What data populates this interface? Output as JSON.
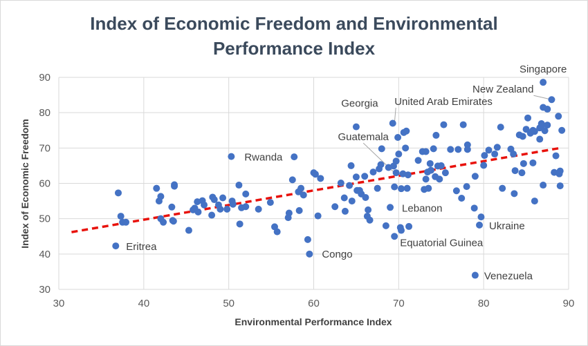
{
  "chart_data": {
    "type": "scatter",
    "title_line1": "Index of Economic Freedom and Environmental",
    "title_line2": "Performance Index",
    "xlabel": "Environmental Performance Index",
    "ylabel": "Index of Economic Freedom",
    "xlim": [
      30,
      90
    ],
    "ylim": [
      30,
      90
    ],
    "xticks": [
      30,
      40,
      50,
      60,
      70,
      80,
      90
    ],
    "yticks": [
      30,
      40,
      50,
      60,
      70,
      80,
      90
    ],
    "grid": true,
    "point_color": "#4472c4",
    "trendline": {
      "type": "linear",
      "x": [
        31.5,
        89
      ],
      "y": [
        46.2,
        70.0
      ],
      "color": "#e8120c",
      "style": "dashed"
    },
    "annotations": [
      {
        "label": "Singapore",
        "x": 87.0,
        "y": 88.6
      },
      {
        "label": "New Zealand",
        "x": 88.0,
        "y": 83.7
      },
      {
        "label": "United Arab Emirates",
        "x": 69.5,
        "y": 76.9
      },
      {
        "label": "Georgia",
        "x": 65.0,
        "y": 76.0
      },
      {
        "label": "Rwanda",
        "x": 50.3,
        "y": 67.6
      },
      {
        "label": "Guatemala",
        "x": 69.5,
        "y": 63.0
      },
      {
        "label": "Lebanon",
        "x": 69.0,
        "y": 53.2
      },
      {
        "label": "Ukraine",
        "x": 79.5,
        "y": 48.2
      },
      {
        "label": "Equatorial Guinea",
        "x": 69.5,
        "y": 45.0
      },
      {
        "label": "Eritrea",
        "x": 36.7,
        "y": 42.3
      },
      {
        "label": "Congo",
        "x": 59.5,
        "y": 40.0
      },
      {
        "label": "Venezuela",
        "x": 79.0,
        "y": 34.0
      }
    ],
    "points": [
      [
        36.7,
        42.3
      ],
      [
        37.0,
        57.3
      ],
      [
        37.3,
        50.7
      ],
      [
        37.5,
        49.0
      ],
      [
        37.9,
        49.0
      ],
      [
        41.5,
        58.6
      ],
      [
        41.8,
        55.0
      ],
      [
        42.0,
        56.3
      ],
      [
        42.0,
        50.0
      ],
      [
        42.3,
        49.0
      ],
      [
        43.3,
        53.3
      ],
      [
        43.4,
        49.5
      ],
      [
        43.5,
        49.3
      ],
      [
        43.6,
        59.6
      ],
      [
        43.6,
        59.2
      ],
      [
        45.3,
        46.7
      ],
      [
        45.8,
        52.5
      ],
      [
        46.0,
        53.0
      ],
      [
        46.3,
        54.8
      ],
      [
        46.4,
        51.9
      ],
      [
        46.9,
        55.1
      ],
      [
        47.1,
        53.9
      ],
      [
        48.0,
        51.0
      ],
      [
        48.1,
        56.1
      ],
      [
        48.3,
        55.4
      ],
      [
        48.8,
        53.9
      ],
      [
        49.0,
        52.7
      ],
      [
        49.3,
        55.9
      ],
      [
        49.8,
        52.7
      ],
      [
        50.3,
        67.6
      ],
      [
        50.4,
        55.0
      ],
      [
        50.5,
        54.1
      ],
      [
        51.2,
        59.5
      ],
      [
        51.3,
        48.5
      ],
      [
        51.5,
        53.1
      ],
      [
        52.0,
        57.0
      ],
      [
        52.0,
        53.4
      ],
      [
        53.5,
        52.7
      ],
      [
        54.9,
        54.6
      ],
      [
        55.4,
        47.7
      ],
      [
        55.7,
        46.3
      ],
      [
        57.0,
        50.3
      ],
      [
        57.1,
        51.6
      ],
      [
        57.5,
        61.0
      ],
      [
        57.7,
        67.5
      ],
      [
        58.2,
        57.6
      ],
      [
        58.5,
        58.6
      ],
      [
        58.3,
        52.3
      ],
      [
        58.8,
        56.7
      ],
      [
        59.3,
        44.1
      ],
      [
        59.5,
        40.0
      ],
      [
        60.0,
        63.0
      ],
      [
        60.2,
        62.6
      ],
      [
        60.5,
        50.8
      ],
      [
        60.8,
        61.4
      ],
      [
        62.5,
        53.4
      ],
      [
        63.2,
        60.1
      ],
      [
        63.6,
        55.9
      ],
      [
        63.7,
        52.1
      ],
      [
        64.2,
        59.4
      ],
      [
        64.4,
        65.0
      ],
      [
        64.5,
        55.0
      ],
      [
        65.0,
        76.0
      ],
      [
        65.0,
        61.8
      ],
      [
        65.1,
        58.0
      ],
      [
        65.4,
        58.0
      ],
      [
        65.6,
        57.0
      ],
      [
        66.0,
        62.0
      ],
      [
        66.1,
        56.0
      ],
      [
        66.3,
        50.7
      ],
      [
        66.4,
        52.5
      ],
      [
        66.6,
        49.6
      ],
      [
        67.0,
        63.2
      ],
      [
        67.5,
        58.6
      ],
      [
        67.7,
        64.1
      ],
      [
        67.9,
        65.3
      ],
      [
        68.0,
        69.8
      ],
      [
        68.5,
        48.0
      ],
      [
        68.8,
        64.5
      ],
      [
        69.0,
        53.2
      ],
      [
        69.3,
        77.0
      ],
      [
        69.4,
        64.9
      ],
      [
        69.5,
        45.0
      ],
      [
        69.7,
        63.0
      ],
      [
        69.5,
        59.0
      ],
      [
        69.7,
        66.3
      ],
      [
        69.9,
        73.0
      ],
      [
        70.0,
        68.3
      ],
      [
        70.3,
        58.5
      ],
      [
        70.2,
        47.5
      ],
      [
        70.3,
        46.7
      ],
      [
        70.6,
        74.4
      ],
      [
        70.5,
        62.7
      ],
      [
        70.8,
        70.0
      ],
      [
        70.9,
        74.8
      ],
      [
        71.1,
        62.4
      ],
      [
        71.0,
        58.6
      ],
      [
        71.2,
        47.8
      ],
      [
        72.3,
        66.5
      ],
      [
        72.8,
        69.0
      ],
      [
        73.0,
        58.3
      ],
      [
        73.2,
        61.2
      ],
      [
        73.2,
        69.0
      ],
      [
        73.4,
        63.2
      ],
      [
        73.5,
        58.6
      ],
      [
        73.7,
        65.6
      ],
      [
        73.8,
        63.7
      ],
      [
        74.1,
        69.8
      ],
      [
        74.3,
        61.9
      ],
      [
        74.4,
        73.6
      ],
      [
        74.6,
        64.9
      ],
      [
        74.8,
        61.2
      ],
      [
        75.0,
        65.0
      ],
      [
        75.3,
        76.6
      ],
      [
        75.5,
        63.0
      ],
      [
        76.1,
        69.6
      ],
      [
        76.8,
        57.9
      ],
      [
        77.0,
        69.6
      ],
      [
        77.4,
        55.8
      ],
      [
        77.6,
        76.6
      ],
      [
        78.0,
        59.1
      ],
      [
        78.1,
        70.9
      ],
      [
        78.1,
        69.6
      ],
      [
        78.9,
        53.0
      ],
      [
        79.0,
        34.0
      ],
      [
        79.0,
        62.0
      ],
      [
        79.5,
        48.2
      ],
      [
        79.7,
        50.5
      ],
      [
        80.0,
        65.1
      ],
      [
        80.1,
        67.9
      ],
      [
        80.6,
        69.4
      ],
      [
        81.3,
        68.3
      ],
      [
        81.6,
        70.2
      ],
      [
        82.0,
        75.9
      ],
      [
        82.2,
        58.6
      ],
      [
        83.2,
        69.7
      ],
      [
        83.5,
        68.3
      ],
      [
        83.6,
        57.1
      ],
      [
        83.7,
        63.6
      ],
      [
        84.2,
        73.7
      ],
      [
        84.5,
        63.0
      ],
      [
        84.6,
        73.3
      ],
      [
        84.7,
        65.6
      ],
      [
        85.0,
        75.3
      ],
      [
        85.2,
        78.5
      ],
      [
        85.5,
        74.2
      ],
      [
        85.8,
        65.8
      ],
      [
        85.8,
        75.0
      ],
      [
        86.0,
        74.7
      ],
      [
        86.0,
        55.0
      ],
      [
        86.6,
        75.7
      ],
      [
        86.6,
        72.5
      ],
      [
        86.8,
        76.9
      ],
      [
        86.8,
        76.3
      ],
      [
        87.0,
        81.5
      ],
      [
        87.0,
        88.6
      ],
      [
        87.0,
        59.5
      ],
      [
        87.2,
        74.9
      ],
      [
        87.5,
        81.0
      ],
      [
        87.5,
        76.5
      ],
      [
        88.0,
        83.7
      ],
      [
        88.3,
        63.1
      ],
      [
        88.5,
        67.8
      ],
      [
        88.8,
        79.0
      ],
      [
        88.9,
        62.7
      ],
      [
        89.0,
        63.5
      ],
      [
        89.0,
        59.3
      ],
      [
        89.2,
        75.0
      ]
    ]
  }
}
